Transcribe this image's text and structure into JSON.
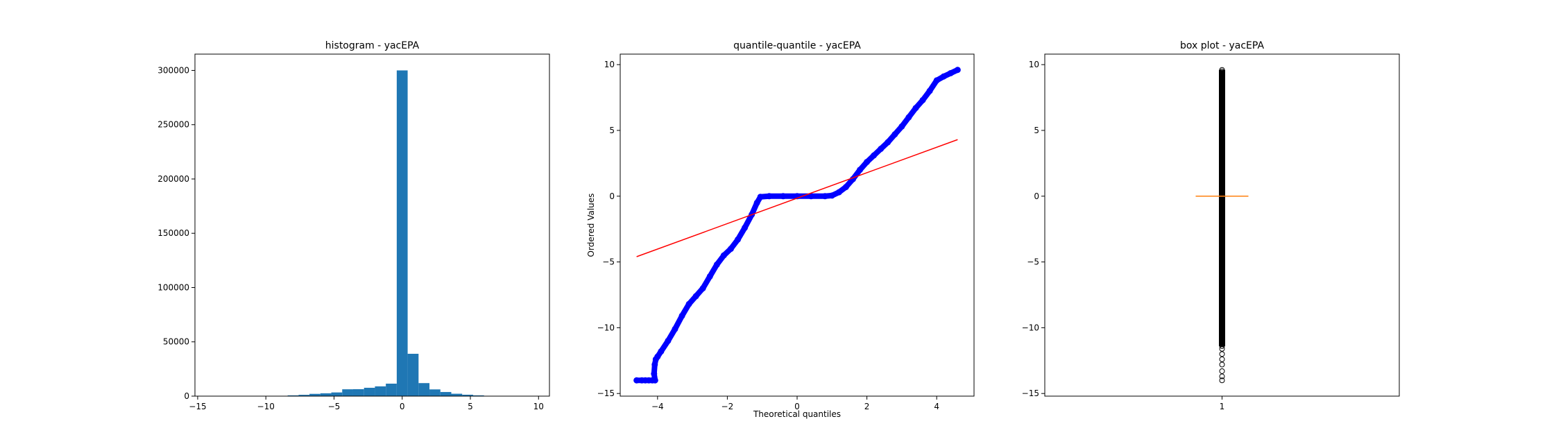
{
  "chart_data": [
    {
      "type": "bar",
      "title": "histogram - yacEPA",
      "xlabel": "",
      "ylabel": "",
      "xlim": [
        -15.2,
        10.8
      ],
      "ylim": [
        0,
        315000
      ],
      "xticks": [
        -15,
        -10,
        -5,
        0,
        5,
        10
      ],
      "yticks": [
        0,
        50000,
        100000,
        150000,
        200000,
        250000,
        300000
      ],
      "bin_edges": [
        -14.0,
        -13.2,
        -12.4,
        -11.6,
        -10.8,
        -10.0,
        -9.2,
        -8.4,
        -7.6,
        -6.8,
        -6.0,
        -5.2,
        -4.4,
        -3.6,
        -2.8,
        -2.0,
        -1.2,
        -0.4,
        0.4,
        1.2,
        2.0,
        2.8,
        3.6,
        4.4,
        5.2,
        6.0,
        6.8,
        7.6,
        8.4,
        9.2,
        10.0
      ],
      "values": [
        5,
        0,
        5,
        10,
        20,
        60,
        300,
        700,
        1200,
        2100,
        2600,
        3400,
        6300,
        6400,
        7700,
        9000,
        11500,
        300000,
        39000,
        12000,
        6200,
        3800,
        2200,
        1300,
        700,
        300,
        100,
        50,
        20,
        10
      ],
      "color": "#1f77b4"
    },
    {
      "type": "scatter",
      "title": "quantile-quantile - yacEPA",
      "xlabel": "Theoretical quantiles",
      "ylabel": "Ordered Values",
      "xlim": [
        -5.07,
        5.07
      ],
      "ylim": [
        -15.2,
        10.8
      ],
      "xticks": [
        -4,
        -2,
        0,
        2,
        4
      ],
      "yticks": [
        -15,
        -10,
        -5,
        0,
        5,
        10
      ],
      "points": [
        [
          -4.6,
          -14.0
        ],
        [
          -4.45,
          -14.0
        ],
        [
          -4.35,
          -14.0
        ],
        [
          -4.25,
          -14.0
        ],
        [
          -4.15,
          -14.0
        ],
        [
          -4.07,
          -14.0
        ],
        [
          -4.1,
          -13.5
        ],
        [
          -4.08,
          -12.8
        ],
        [
          -4.05,
          -12.4
        ],
        [
          -4.0,
          -12.2
        ],
        [
          -3.9,
          -11.8
        ],
        [
          -3.7,
          -11.0
        ],
        [
          -3.5,
          -10.1
        ],
        [
          -3.3,
          -9.1
        ],
        [
          -3.1,
          -8.2
        ],
        [
          -2.9,
          -7.6
        ],
        [
          -2.7,
          -7.0
        ],
        [
          -2.5,
          -6.1
        ],
        [
          -2.3,
          -5.2
        ],
        [
          -2.1,
          -4.5
        ],
        [
          -1.9,
          -4.0
        ],
        [
          -1.7,
          -3.3
        ],
        [
          -1.5,
          -2.4
        ],
        [
          -1.3,
          -1.4
        ],
        [
          -1.15,
          -0.5
        ],
        [
          -1.05,
          -0.05
        ],
        [
          -0.8,
          0.0
        ],
        [
          -0.4,
          0.0
        ],
        [
          0.0,
          0.0
        ],
        [
          0.4,
          0.0
        ],
        [
          0.8,
          0.0
        ],
        [
          1.0,
          0.05
        ],
        [
          1.2,
          0.3
        ],
        [
          1.4,
          0.7
        ],
        [
          1.6,
          1.3
        ],
        [
          1.8,
          2.0
        ],
        [
          2.0,
          2.6
        ],
        [
          2.2,
          3.1
        ],
        [
          2.4,
          3.6
        ],
        [
          2.6,
          4.1
        ],
        [
          2.8,
          4.7
        ],
        [
          3.0,
          5.3
        ],
        [
          3.2,
          6.0
        ],
        [
          3.4,
          6.7
        ],
        [
          3.6,
          7.3
        ],
        [
          3.8,
          8.0
        ],
        [
          4.0,
          8.8
        ],
        [
          4.2,
          9.1
        ],
        [
          4.4,
          9.35
        ],
        [
          4.6,
          9.6
        ]
      ],
      "fit_line": {
        "x": [
          -4.6,
          4.6
        ],
        "y": [
          -4.6,
          4.3
        ]
      },
      "point_color": "#0000ff",
      "line_color": "#ff0000"
    },
    {
      "type": "box",
      "title": "box plot - yacEPA",
      "xlabel": "",
      "ylabel": "",
      "xticks_labels": [
        "1"
      ],
      "ylim": [
        -15.2,
        10.8
      ],
      "yticks": [
        -15,
        -10,
        -5,
        0,
        5,
        10
      ],
      "median": 0.0,
      "q1": 0.0,
      "q3": 0.0,
      "whisker_low": 0.0,
      "whisker_high": 0.0,
      "outliers_range": [
        -14.0,
        9.6
      ],
      "outliers_sparse": [
        -14.0,
        -13.7,
        -13.3,
        -12.8,
        -12.4,
        -12.0,
        -11.6
      ],
      "median_color": "#ff7f0e"
    }
  ]
}
